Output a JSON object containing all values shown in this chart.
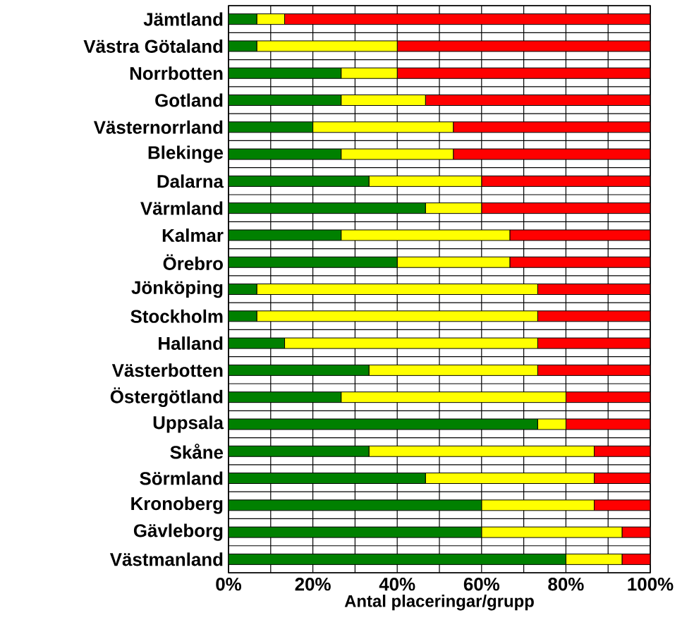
{
  "chart_data": {
    "type": "bar",
    "orientation": "horizontal",
    "stacked": true,
    "xlabel": "Antal placeringar/grupp",
    "categories": [
      "Jämtland",
      "Västra Götaland",
      "Norrbotten",
      "Gotland",
      "Västernorrland",
      "Blekinge",
      "Dalarna",
      "Värmland",
      "Kalmar",
      "Örebro",
      "Jönköping",
      "Stockholm",
      "Halland",
      "Västerbotten",
      "Östergötland",
      "Uppsala",
      "Skåne",
      "Sörmland",
      "Kronoberg",
      "Gävleborg",
      "Västmanland"
    ],
    "series": [
      {
        "color": "#008000",
        "values": [
          6.7,
          6.7,
          26.7,
          26.7,
          20,
          26.7,
          33.3,
          46.7,
          26.7,
          40,
          6.7,
          6.7,
          13.3,
          33.3,
          26.7,
          73.3,
          33.3,
          46.7,
          60,
          60,
          80
        ]
      },
      {
        "color": "#ffff00",
        "values": [
          6.6,
          33.3,
          13.3,
          20,
          33.3,
          26.6,
          26.7,
          13.3,
          40,
          26.7,
          66.6,
          66.6,
          60,
          40,
          53.3,
          6.7,
          53.4,
          40,
          26.7,
          33.3,
          13.3
        ]
      },
      {
        "color": "#ff0000",
        "values": [
          86.7,
          60,
          60,
          53.3,
          46.7,
          46.7,
          40,
          40,
          33.3,
          33.3,
          26.7,
          26.7,
          26.7,
          26.7,
          20,
          20,
          13.3,
          13.3,
          13.3,
          6.7,
          6.7
        ]
      }
    ],
    "xlim": [
      0,
      100
    ],
    "xticks": [
      {
        "value": 0,
        "label": "0%"
      },
      {
        "value": 10,
        "label": null
      },
      {
        "value": 20,
        "label": "20%"
      },
      {
        "value": 30,
        "label": null
      },
      {
        "value": 40,
        "label": "40%"
      },
      {
        "value": 50,
        "label": null
      },
      {
        "value": 60,
        "label": "60%"
      },
      {
        "value": 70,
        "label": null
      },
      {
        "value": 80,
        "label": "80%"
      },
      {
        "value": 90,
        "label": null
      },
      {
        "value": 100,
        "label": "100%"
      }
    ],
    "grid": true
  }
}
